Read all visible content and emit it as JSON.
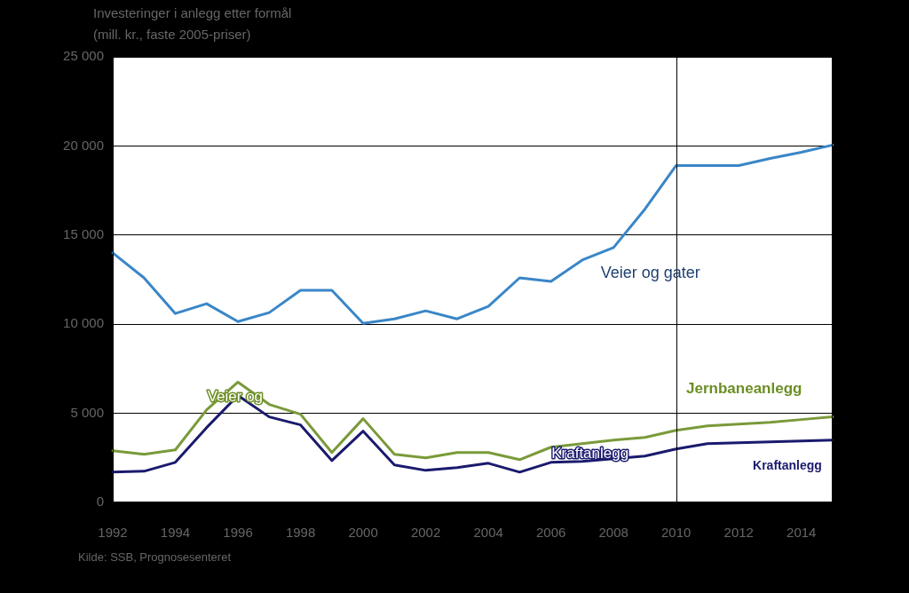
{
  "chart_data": {
    "type": "line",
    "title": "Investeringer i anlegg etter formål",
    "subtitle": "(mill. kr., faste 2005-priser)",
    "source": "Kilde: SSB, Prognosesenteret",
    "categories": [
      "1992",
      null,
      "1994",
      null,
      "1996",
      null,
      "1998",
      null,
      "2000",
      null,
      "2002",
      null,
      "2004",
      null,
      "2006",
      null,
      "2008",
      null,
      "2010",
      null,
      "2012",
      null,
      "2014",
      null
    ],
    "series": [
      {
        "name": "Veier og gater",
        "color": "#3a86c8",
        "values": [
          14000,
          12600,
          10600,
          11150,
          10150,
          10650,
          11900,
          11900,
          10050,
          10300,
          10750,
          10300,
          11000,
          12600,
          12400,
          13600,
          14300,
          16450,
          18900,
          18900,
          18900,
          19300,
          19650,
          20050
        ]
      },
      {
        "name": "Jernbaneanlegg",
        "color": "#7a9a3a",
        "values": [
          2900,
          2700,
          2950,
          5200,
          6750,
          5500,
          4950,
          2800,
          4700,
          2700,
          2500,
          2800,
          2800,
          2400,
          3100,
          3300,
          3500,
          3650,
          4050,
          4300,
          4400,
          4500,
          4650,
          4800
        ]
      },
      {
        "name": "Kraftanlegg",
        "color": "#1a1a6e",
        "values": [
          1700,
          1750,
          2250,
          4200,
          6000,
          4800,
          4350,
          2350,
          4000,
          2100,
          1800,
          1950,
          2200,
          1700,
          2250,
          2300,
          2450,
          2600,
          3000,
          3300,
          3350,
          3400,
          3450,
          3500
        ]
      }
    ],
    "annotations": [
      "Veier og gater",
      "Jernbaneanlegg",
      "Kraftanlegg",
      "Veier og",
      "Kraftanlegg"
    ],
    "vline": "2010",
    "ylim": [
      0,
      25000
    ],
    "yticks": [
      0,
      {
        "value": 5000,
        "label": "5 000"
      },
      {
        "value": 10000,
        "label": "10 000"
      },
      {
        "value": 15000,
        "label": "15 000"
      },
      {
        "value": 20000,
        "label": "20 000"
      },
      {
        "value": 25000,
        "label": "25 000"
      }
    ],
    "grid": true,
    "legend": false
  }
}
